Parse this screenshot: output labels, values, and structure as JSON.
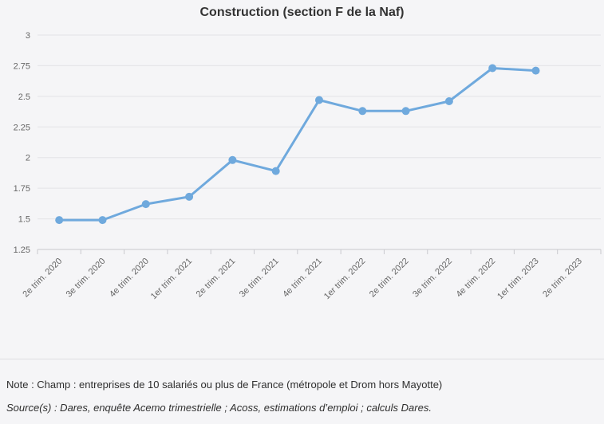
{
  "chart_data": {
    "type": "line",
    "title": "Construction (section F de la Naf)",
    "categories": [
      "2e trim. 2020",
      "3e trim. 2020",
      "4e trim. 2020",
      "1er trim. 2021",
      "2e trim. 2021",
      "3e trim. 2021",
      "4e trim. 2021",
      "1er trim. 2022",
      "2e trim. 2022",
      "3e trim. 2022",
      "4e trim. 2022",
      "1er trim. 2023",
      "2e trim. 2023"
    ],
    "series": [
      {
        "name": "Construction (section F de la Naf)",
        "values": [
          1.49,
          1.49,
          1.62,
          1.68,
          1.98,
          1.89,
          2.47,
          2.38,
          2.38,
          2.46,
          2.73,
          2.71,
          null
        ]
      }
    ],
    "xlabel": "",
    "ylabel": "",
    "ylim": [
      1.25,
      3
    ],
    "yticks": [
      {
        "value": 3,
        "label": "3"
      },
      {
        "value": 2.75,
        "label": "2.75"
      },
      {
        "value": 2.5,
        "label": "2.5"
      },
      {
        "value": 2.25,
        "label": "2.25"
      },
      {
        "value": 2,
        "label": "2"
      },
      {
        "value": 1.75,
        "label": "1.75"
      },
      {
        "value": 1.5,
        "label": "1.5"
      },
      {
        "value": 1.25,
        "label": "1.25"
      }
    ],
    "grid": true,
    "legend_position": "none",
    "colors": {
      "series": "#6fa9dd",
      "gridline": "#e3e3e7",
      "axis": "#c9c9ce",
      "axis_text": "#666666",
      "title_text": "#333333",
      "background": "#f5f5f7"
    }
  },
  "footer": {
    "note": "Note : Champ : entreprises de 10 salariés ou plus de France (métropole et Drom hors Mayotte)",
    "source": "Source(s) : Dares, enquête Acemo trimestrielle ; Acoss, estimations d’emploi ; calculs Dares."
  }
}
